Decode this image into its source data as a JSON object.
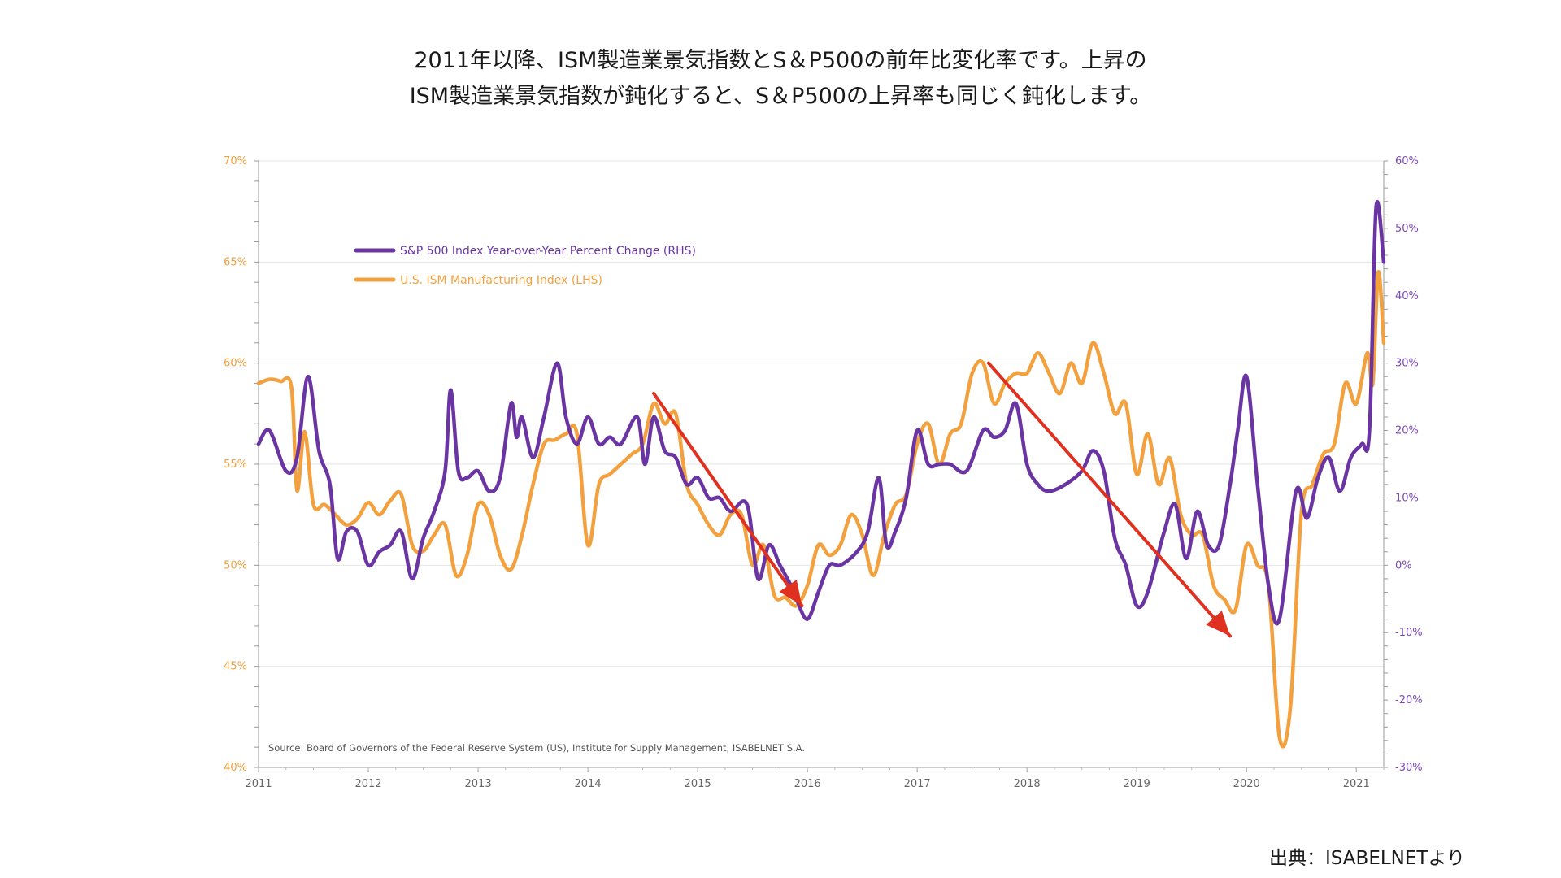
{
  "headline": {
    "line1": "2011年以降、ISM製造業景気指数とS＆P500の前年比変化率です。上昇の",
    "line2": "ISM製造業景気指数が鈍化すると、S＆P500の上昇率も同じく鈍化します。"
  },
  "credit": "出典：ISABELNETより",
  "colors": {
    "sp500": "#6a35a3",
    "ism": "#f2a13e",
    "arrow": "#e0301f",
    "grid": "#e6e6e6",
    "left_axis_text": "#f2a13e",
    "right_axis_text": "#7b48b8"
  },
  "chart_data": {
    "type": "line",
    "source_note": "Source: Board of Governors of the Federal Reserve System (US), Institute for Supply Management, ISABELNET S.A.",
    "x_ticks": [
      "2011",
      "2012",
      "2013",
      "2014",
      "2015",
      "2016",
      "2017",
      "2018",
      "2019",
      "2020",
      "2021"
    ],
    "xlim": [
      2011.0,
      2021.25
    ],
    "left_axis": {
      "ticks": [
        "40%",
        "45%",
        "50%",
        "55%",
        "60%",
        "65%",
        "70%"
      ],
      "range": [
        40,
        70
      ]
    },
    "right_axis": {
      "ticks": [
        "-30%",
        "-20%",
        "-10%",
        "0%",
        "10%",
        "20%",
        "30%",
        "40%",
        "50%",
        "60%"
      ],
      "range": [
        -30,
        60
      ]
    },
    "legend_position": "upper-left",
    "series": [
      {
        "name": "S&P 500 Index Year-over-Year Percent Change (RHS)",
        "axis": "right",
        "points": [
          [
            2011.0,
            18
          ],
          [
            2011.1,
            20
          ],
          [
            2011.25,
            14
          ],
          [
            2011.35,
            16
          ],
          [
            2011.45,
            28
          ],
          [
            2011.55,
            17
          ],
          [
            2011.65,
            12
          ],
          [
            2011.72,
            1
          ],
          [
            2011.8,
            5
          ],
          [
            2011.9,
            5
          ],
          [
            2012.0,
            0
          ],
          [
            2012.1,
            2
          ],
          [
            2012.2,
            3
          ],
          [
            2012.3,
            5
          ],
          [
            2012.4,
            -2
          ],
          [
            2012.5,
            4
          ],
          [
            2012.6,
            8
          ],
          [
            2012.7,
            14
          ],
          [
            2012.75,
            26
          ],
          [
            2012.82,
            14
          ],
          [
            2012.9,
            13
          ],
          [
            2013.0,
            14
          ],
          [
            2013.1,
            11
          ],
          [
            2013.2,
            13
          ],
          [
            2013.3,
            24
          ],
          [
            2013.35,
            19
          ],
          [
            2013.4,
            22
          ],
          [
            2013.5,
            16
          ],
          [
            2013.6,
            22
          ],
          [
            2013.72,
            30
          ],
          [
            2013.8,
            22
          ],
          [
            2013.9,
            18
          ],
          [
            2014.0,
            22
          ],
          [
            2014.1,
            18
          ],
          [
            2014.2,
            19
          ],
          [
            2014.3,
            18
          ],
          [
            2014.45,
            22
          ],
          [
            2014.52,
            15
          ],
          [
            2014.6,
            22
          ],
          [
            2014.7,
            17
          ],
          [
            2014.8,
            16
          ],
          [
            2014.9,
            12
          ],
          [
            2015.0,
            13
          ],
          [
            2015.1,
            10
          ],
          [
            2015.2,
            10
          ],
          [
            2015.3,
            8
          ],
          [
            2015.45,
            9
          ],
          [
            2015.55,
            -2
          ],
          [
            2015.65,
            3
          ],
          [
            2015.75,
            0
          ],
          [
            2015.85,
            -3
          ],
          [
            2015.9,
            -5
          ],
          [
            2016.0,
            -8
          ],
          [
            2016.1,
            -4
          ],
          [
            2016.2,
            0
          ],
          [
            2016.3,
            0
          ],
          [
            2016.45,
            2
          ],
          [
            2016.55,
            5
          ],
          [
            2016.65,
            13
          ],
          [
            2016.72,
            3
          ],
          [
            2016.8,
            5
          ],
          [
            2016.9,
            10
          ],
          [
            2017.0,
            20
          ],
          [
            2017.1,
            15
          ],
          [
            2017.2,
            15
          ],
          [
            2017.3,
            15
          ],
          [
            2017.45,
            14
          ],
          [
            2017.6,
            20
          ],
          [
            2017.7,
            19
          ],
          [
            2017.8,
            20
          ],
          [
            2017.9,
            24
          ],
          [
            2018.0,
            15
          ],
          [
            2018.1,
            12
          ],
          [
            2018.2,
            11
          ],
          [
            2018.35,
            12
          ],
          [
            2018.5,
            14
          ],
          [
            2018.6,
            17
          ],
          [
            2018.7,
            14
          ],
          [
            2018.8,
            4
          ],
          [
            2018.9,
            0
          ],
          [
            2019.0,
            -6
          ],
          [
            2019.1,
            -4
          ],
          [
            2019.25,
            5
          ],
          [
            2019.35,
            9
          ],
          [
            2019.45,
            1
          ],
          [
            2019.55,
            8
          ],
          [
            2019.65,
            3
          ],
          [
            2019.75,
            3
          ],
          [
            2019.85,
            12
          ],
          [
            2019.92,
            20
          ],
          [
            2020.0,
            28
          ],
          [
            2020.1,
            12
          ],
          [
            2020.2,
            -3
          ],
          [
            2020.3,
            -8
          ],
          [
            2020.45,
            11
          ],
          [
            2020.55,
            7
          ],
          [
            2020.65,
            13
          ],
          [
            2020.75,
            16
          ],
          [
            2020.85,
            11
          ],
          [
            2020.95,
            16
          ],
          [
            2021.05,
            18
          ],
          [
            2021.12,
            20
          ],
          [
            2021.18,
            53
          ],
          [
            2021.25,
            45
          ]
        ]
      },
      {
        "name": "U.S. ISM Manufacturing Index (LHS)",
        "axis": "left",
        "points": [
          [
            2011.0,
            59.0
          ],
          [
            2011.1,
            59.2
          ],
          [
            2011.2,
            59.1
          ],
          [
            2011.3,
            58.8
          ],
          [
            2011.35,
            53.7
          ],
          [
            2011.42,
            56.6
          ],
          [
            2011.5,
            53.0
          ],
          [
            2011.6,
            53.0
          ],
          [
            2011.7,
            52.5
          ],
          [
            2011.8,
            52.0
          ],
          [
            2011.9,
            52.3
          ],
          [
            2012.0,
            53.1
          ],
          [
            2012.1,
            52.5
          ],
          [
            2012.2,
            53.2
          ],
          [
            2012.3,
            53.5
          ],
          [
            2012.4,
            51.0
          ],
          [
            2012.5,
            50.7
          ],
          [
            2012.6,
            51.5
          ],
          [
            2012.7,
            52.0
          ],
          [
            2012.8,
            49.5
          ],
          [
            2012.9,
            50.5
          ],
          [
            2013.0,
            53.0
          ],
          [
            2013.1,
            52.5
          ],
          [
            2013.2,
            50.5
          ],
          [
            2013.3,
            49.8
          ],
          [
            2013.4,
            51.5
          ],
          [
            2013.5,
            54.0
          ],
          [
            2013.6,
            56.0
          ],
          [
            2013.7,
            56.2
          ],
          [
            2013.8,
            56.5
          ],
          [
            2013.9,
            56.5
          ],
          [
            2014.0,
            51.0
          ],
          [
            2014.1,
            54.0
          ],
          [
            2014.2,
            54.5
          ],
          [
            2014.3,
            55.0
          ],
          [
            2014.4,
            55.5
          ],
          [
            2014.5,
            56.0
          ],
          [
            2014.6,
            58.0
          ],
          [
            2014.7,
            57.0
          ],
          [
            2014.8,
            57.5
          ],
          [
            2014.9,
            54.0
          ],
          [
            2015.0,
            53.0
          ],
          [
            2015.1,
            52.0
          ],
          [
            2015.2,
            51.5
          ],
          [
            2015.3,
            52.5
          ],
          [
            2015.4,
            52.5
          ],
          [
            2015.5,
            50.0
          ],
          [
            2015.6,
            51.0
          ],
          [
            2015.7,
            48.5
          ],
          [
            2015.8,
            48.4
          ],
          [
            2015.9,
            48.0
          ],
          [
            2016.0,
            49.0
          ],
          [
            2016.1,
            51.0
          ],
          [
            2016.2,
            50.5
          ],
          [
            2016.3,
            51.0
          ],
          [
            2016.4,
            52.5
          ],
          [
            2016.5,
            51.5
          ],
          [
            2016.6,
            49.5
          ],
          [
            2016.7,
            51.5
          ],
          [
            2016.8,
            53.0
          ],
          [
            2016.9,
            53.5
          ],
          [
            2017.0,
            56.0
          ],
          [
            2017.1,
            57.0
          ],
          [
            2017.2,
            55.0
          ],
          [
            2017.3,
            56.5
          ],
          [
            2017.4,
            57.0
          ],
          [
            2017.5,
            59.5
          ],
          [
            2017.6,
            60.0
          ],
          [
            2017.7,
            58.0
          ],
          [
            2017.8,
            59.0
          ],
          [
            2017.9,
            59.5
          ],
          [
            2018.0,
            59.5
          ],
          [
            2018.1,
            60.5
          ],
          [
            2018.2,
            59.5
          ],
          [
            2018.3,
            58.5
          ],
          [
            2018.4,
            60.0
          ],
          [
            2018.5,
            59.0
          ],
          [
            2018.6,
            61.0
          ],
          [
            2018.7,
            59.5
          ],
          [
            2018.8,
            57.5
          ],
          [
            2018.9,
            58.0
          ],
          [
            2019.0,
            54.5
          ],
          [
            2019.1,
            56.5
          ],
          [
            2019.2,
            54.0
          ],
          [
            2019.3,
            55.3
          ],
          [
            2019.4,
            52.5
          ],
          [
            2019.5,
            51.5
          ],
          [
            2019.6,
            51.5
          ],
          [
            2019.7,
            49.0
          ],
          [
            2019.8,
            48.3
          ],
          [
            2019.9,
            47.8
          ],
          [
            2020.0,
            51.0
          ],
          [
            2020.1,
            50.0
          ],
          [
            2020.2,
            49.0
          ],
          [
            2020.3,
            41.5
          ],
          [
            2020.4,
            43.0
          ],
          [
            2020.5,
            52.6
          ],
          [
            2020.6,
            54.0
          ],
          [
            2020.7,
            55.5
          ],
          [
            2020.8,
            56.0
          ],
          [
            2020.9,
            59.0
          ],
          [
            2021.0,
            58.0
          ],
          [
            2021.1,
            60.5
          ],
          [
            2021.15,
            59.0
          ],
          [
            2021.2,
            64.5
          ],
          [
            2021.25,
            61.0
          ]
        ]
      }
    ],
    "annotations": [
      {
        "type": "arrow",
        "from": [
          2014.6,
          58.5
        ],
        "to": [
          2015.95,
          48.0
        ]
      },
      {
        "type": "arrow",
        "from": [
          2017.65,
          60.0
        ],
        "to": [
          2019.85,
          46.5
        ]
      }
    ]
  }
}
